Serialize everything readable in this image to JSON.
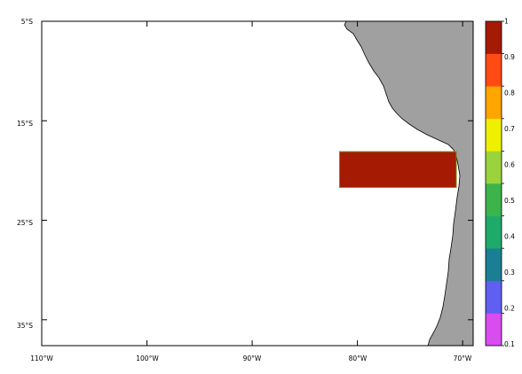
{
  "map": {
    "projection": "lon-lat",
    "region": "Southeast Pacific / west coast of South America",
    "lon_range": [
      -110,
      -69
    ],
    "lat_range": [
      -37.6,
      -5
    ],
    "x_tick_labels": [
      "110°W",
      "100°W",
      "90°W",
      "80°W",
      "70°W"
    ],
    "y_tick_labels": [
      "5°S",
      "15°S",
      "25°S",
      "35°S"
    ],
    "land_color": "#a0a0a0",
    "ocean_color": "#ffffff"
  },
  "chart_data": {
    "type": "heatmap",
    "title": "",
    "xlabel": "",
    "ylabel": "",
    "xlim": [
      -110,
      -69
    ],
    "ylim": [
      -37.6,
      -5
    ],
    "x_ticks": [
      -110,
      -100,
      -90,
      -80,
      -70
    ],
    "y_ticks": [
      -5,
      -15,
      -25,
      -35
    ],
    "fields": [
      {
        "lon_min": -81.7,
        "lon_max": -70.6,
        "lat_min": -21.7,
        "lat_max": -18.1,
        "value": 1.0
      }
    ],
    "colorbar": {
      "levels": [
        "0.1",
        "0.2",
        "0.3",
        "0.4",
        "0.5",
        "0.6",
        "0.7",
        "0.8",
        "0.9",
        "1"
      ],
      "colors": [
        "#d84cf0",
        "#5f5ff2",
        "#1a7f94",
        "#1eaa6a",
        "#3cb44b",
        "#9bd33c",
        "#eef000",
        "#ffa500",
        "#ff4a14",
        "#a51a02"
      ]
    }
  }
}
